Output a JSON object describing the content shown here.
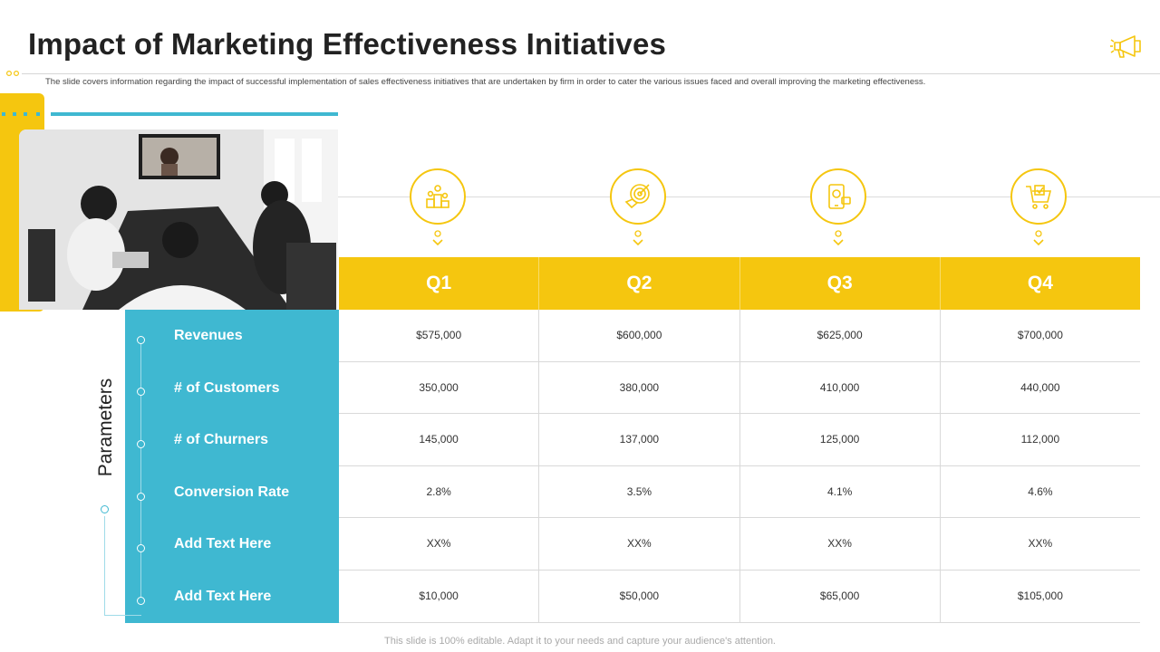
{
  "title": "Impact of Marketing Effectiveness Initiatives",
  "subtitle": "The slide covers information regarding the impact of successful implementation of sales effectiveness initiatives that are undertaken by firm in order to cater the various issues faced and overall improving the marketing effectiveness.",
  "side_label": "Parameters",
  "icons": {
    "header": "megaphone-icon",
    "quarters": [
      "award-podium-icon",
      "target-money-icon",
      "mobile-marketing-icon",
      "shopping-cart-icon"
    ]
  },
  "colors": {
    "accent": "#f5c60f",
    "teal": "#3fb8d1"
  },
  "quarters": [
    "Q1",
    "Q2",
    "Q3",
    "Q4"
  ],
  "parameters": [
    "Revenues",
    "# of Customers",
    "# of Churners",
    "Conversion Rate",
    "Add Text Here",
    "Add Text Here"
  ],
  "rows": [
    [
      "$575,000",
      "$600,000",
      "$625,000",
      "$700,000"
    ],
    [
      "350,000",
      "380,000",
      "410,000",
      "440,000"
    ],
    [
      "145,000",
      "137,000",
      "125,000",
      "112,000"
    ],
    [
      "2.8%",
      "3.5%",
      "4.1%",
      "4.6%"
    ],
    [
      "XX%",
      "XX%",
      "XX%",
      "XX%"
    ],
    [
      "$10,000",
      "$50,000",
      "$65,000",
      "$105,000"
    ]
  ],
  "footer": "This slide is 100% editable. Adapt it to your needs and capture your audience's attention."
}
